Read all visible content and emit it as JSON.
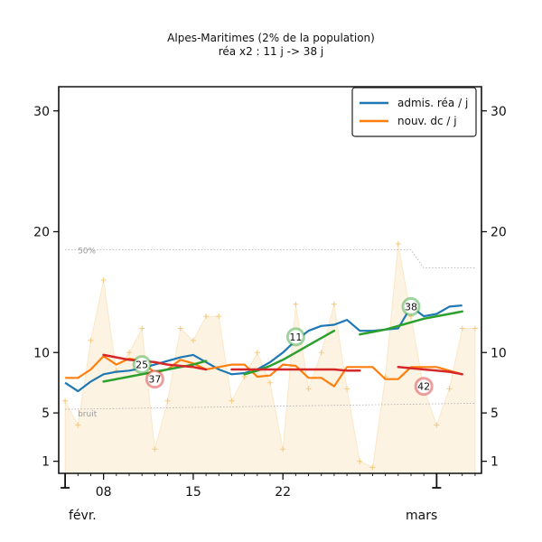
{
  "chart_data": {
    "type": "line",
    "title": "Alpes-Maritimes (2% de la population)",
    "subtitle": "réa x2 : 11 j -> 38 j",
    "ylim": [
      0,
      32
    ],
    "yticks": [
      1,
      5,
      10,
      20,
      30
    ],
    "x_tick_labels": [
      "08",
      "15",
      "22"
    ],
    "month_labels": [
      "févr.",
      "mars"
    ],
    "legend_position": "top-right",
    "grid": false,
    "series": [
      {
        "name": "admis. réa / j",
        "color": "#1f77b4",
        "x": [
          -2,
          -1,
          0,
          1,
          2,
          3,
          4,
          5,
          6,
          7,
          8,
          9,
          10,
          11,
          12,
          13,
          14,
          15,
          16,
          17,
          18,
          19,
          20,
          21,
          22,
          23,
          24,
          25,
          26,
          27,
          28,
          29
        ],
        "values": [
          7.5,
          6.8,
          7.6,
          8.2,
          8.4,
          8.5,
          8.7,
          9.0,
          9.3,
          9.6,
          9.8,
          9.2,
          8.6,
          8.2,
          8.3,
          8.6,
          9.2,
          10.0,
          11.0,
          11.8,
          12.2,
          12.3,
          12.7,
          11.8,
          11.8,
          11.9,
          12.0,
          13.8,
          13.0,
          13.2,
          13.8,
          13.9
        ]
      },
      {
        "name": "nouv. dc / j",
        "color": "#ff7f0e",
        "x": [
          -2,
          -1,
          0,
          1,
          2,
          3,
          4,
          5,
          6,
          7,
          8,
          9,
          10,
          11,
          12,
          13,
          14,
          15,
          16,
          17,
          18,
          19,
          20,
          21,
          22,
          23,
          24,
          25,
          26,
          27,
          28,
          29
        ],
        "values": [
          7.9,
          7.9,
          8.6,
          9.7,
          9.0,
          9.5,
          9.3,
          8.3,
          8.6,
          9.4,
          9.1,
          8.6,
          8.8,
          9.0,
          9.0,
          8.0,
          8.1,
          9.0,
          8.9,
          7.9,
          7.9,
          7.2,
          8.8,
          8.8,
          8.8,
          7.8,
          7.8,
          8.8,
          8.8,
          8.8,
          8.5,
          8.2
        ]
      },
      {
        "name": "trend_rea",
        "color": "#2ca02c",
        "segments": [
          {
            "x": [
              1,
              2,
              3,
              4,
              5,
              6,
              7,
              8,
              9
            ],
            "values": [
              7.6,
              7.8,
              8.0,
              8.2,
              8.4,
              8.6,
              8.8,
              9.0,
              9.3
            ]
          },
          {
            "x": [
              12,
              13,
              14,
              15,
              16,
              17,
              18,
              19
            ],
            "values": [
              8.2,
              8.5,
              8.9,
              9.4,
              10.0,
              10.6,
              11.2,
              11.8
            ]
          },
          {
            "x": [
              21,
              22,
              23,
              24,
              25,
              26,
              27,
              28,
              29
            ],
            "values": [
              11.5,
              11.7,
              11.9,
              12.2,
              12.5,
              12.8,
              13.0,
              13.2,
              13.4
            ]
          }
        ]
      },
      {
        "name": "trend_dc",
        "color": "#d62728",
        "segments": [
          {
            "x": [
              1,
              2,
              3,
              4,
              5,
              6,
              7,
              8,
              9
            ],
            "values": [
              9.8,
              9.6,
              9.4,
              9.3,
              9.2,
              9.0,
              8.9,
              8.8,
              8.6
            ]
          },
          {
            "x": [
              11,
              12,
              13,
              14,
              15,
              16,
              17,
              18,
              19,
              20,
              21
            ],
            "values": [
              8.6,
              8.6,
              8.6,
              8.6,
              8.6,
              8.6,
              8.6,
              8.6,
              8.6,
              8.5,
              8.5
            ]
          },
          {
            "x": [
              24,
              25,
              26,
              27,
              28,
              29
            ],
            "values": [
              8.8,
              8.7,
              8.6,
              8.5,
              8.4,
              8.2
            ]
          }
        ]
      }
    ],
    "background_noise": {
      "color": "#f5c97e",
      "x": [
        -2,
        -1,
        0,
        1,
        2,
        3,
        4,
        5,
        6,
        7,
        8,
        9,
        10,
        11,
        12,
        13,
        14,
        15,
        16,
        17,
        18,
        19,
        20,
        21,
        22,
        23,
        24,
        25,
        26,
        27,
        28,
        29,
        30
      ],
      "values": [
        6.0,
        4.0,
        11.0,
        16.0,
        8.5,
        10.0,
        12.0,
        2.0,
        6.0,
        12.0,
        11.0,
        13.0,
        13.0,
        6.0,
        8.0,
        10.0,
        7.5,
        2.0,
        14.0,
        7.0,
        10.0,
        14.0,
        7.0,
        1.0,
        0.5,
        8.0,
        19.0,
        13.0,
        7.0,
        4.0,
        7.0,
        12.0,
        12.0
      ]
    },
    "reference_lines": [
      {
        "label": "50%",
        "x": [
          -2,
          25,
          26,
          30
        ],
        "values": [
          18.5,
          18.5,
          17.0,
          17.0
        ]
      },
      {
        "label": "bruit",
        "x": [
          -2,
          30
        ],
        "values": [
          5.3,
          5.8
        ]
      }
    ],
    "annotations": [
      {
        "text": "25",
        "x": 4,
        "y": 9.0,
        "color": "#2ca02c"
      },
      {
        "text": "37",
        "x": 5,
        "y": 7.8,
        "color": "#d62728"
      },
      {
        "text": "11",
        "x": 16,
        "y": 11.3,
        "color": "#2ca02c"
      },
      {
        "text": "38",
        "x": 25,
        "y": 13.8,
        "color": "#2ca02c"
      },
      {
        "text": "42",
        "x": 26,
        "y": 7.2,
        "color": "#d62728"
      }
    ]
  }
}
